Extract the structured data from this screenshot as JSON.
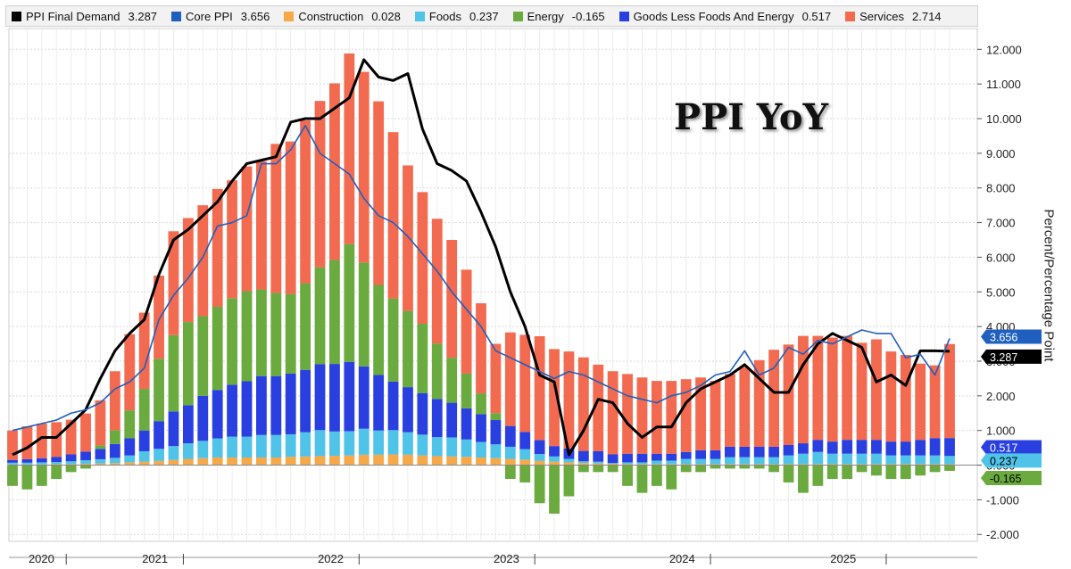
{
  "legend": [
    {
      "name": "PPI Final Demand",
      "value": "3.287",
      "color": "#000000"
    },
    {
      "name": "Core PPI",
      "value": "3.656",
      "color": "#1f5fbf"
    },
    {
      "name": "Construction",
      "value": "0.028",
      "color": "#f7a94a"
    },
    {
      "name": "Foods",
      "value": "0.237",
      "color": "#4fc3e8"
    },
    {
      "name": "Energy",
      "value": "-0.165",
      "color": "#6aaa3f"
    },
    {
      "name": "Goods Less Foods And Energy",
      "value": "0.517",
      "color": "#2a3fe0"
    },
    {
      "name": "Services",
      "value": "2.714",
      "color": "#f26b50"
    }
  ],
  "title": "PPI YoY",
  "ylabel": "Percent/Percentage Point",
  "last_value_tags": [
    {
      "text": "3.656",
      "value": 3.656,
      "bg": "#1f5fbf",
      "fg": "#ffffff"
    },
    {
      "text": "3.287",
      "value": 3.287,
      "bg": "#000000",
      "fg": "#ffffff"
    },
    {
      "text": "0.517",
      "value": 0.517,
      "bg": "#2a3fe0",
      "fg": "#ffffff"
    },
    {
      "text": "0.237",
      "value": 0.237,
      "bg": "#4fc3e8",
      "fg": "#000000"
    },
    {
      "text": "-0.165",
      "value": -0.165,
      "bg": "#6aaa3f",
      "fg": "#000000"
    }
  ],
  "chart_data": {
    "type": "bar",
    "stacked": true,
    "ylim": [
      -2.2,
      12.6
    ],
    "yticks": [
      -2,
      -1,
      0,
      1,
      2,
      3,
      4,
      5,
      6,
      7,
      8,
      9,
      10,
      11,
      12
    ],
    "ytick_labels": [
      "-2.000",
      "-1.000",
      "0.000",
      "1.000",
      "2.000",
      "3.000",
      "4.000",
      "5.000",
      "6.000",
      "7.000",
      "8.000",
      "9.000",
      "10.000",
      "11.000",
      "12.000"
    ],
    "year_labels": [
      {
        "label": "2020",
        "month_index": 1
      },
      {
        "label": "2021",
        "month_index": 9
      },
      {
        "label": "2022",
        "month_index": 21
      },
      {
        "label": "2023",
        "month_index": 33
      },
      {
        "label": "2024",
        "month_index": 45
      },
      {
        "label": "2025",
        "month_index": 56
      }
    ],
    "categories": [
      "2020-04",
      "2020-05",
      "2020-06",
      "2020-07",
      "2020-08",
      "2020-09",
      "2020-10",
      "2020-11",
      "2020-12",
      "2021-01",
      "2021-02",
      "2021-03",
      "2021-04",
      "2021-05",
      "2021-06",
      "2021-07",
      "2021-08",
      "2021-09",
      "2021-10",
      "2021-11",
      "2021-12",
      "2022-01",
      "2022-02",
      "2022-03",
      "2022-04",
      "2022-05",
      "2022-06",
      "2022-07",
      "2022-08",
      "2022-09",
      "2022-10",
      "2022-11",
      "2022-12",
      "2023-01",
      "2023-02",
      "2023-03",
      "2023-04",
      "2023-05",
      "2023-06",
      "2023-07",
      "2023-08",
      "2023-09",
      "2023-10",
      "2023-11",
      "2023-12",
      "2024-01",
      "2024-02",
      "2024-03",
      "2024-04",
      "2024-05",
      "2024-06",
      "2024-07",
      "2024-08",
      "2024-09",
      "2024-10",
      "2024-11",
      "2024-12",
      "2025-01",
      "2025-02",
      "2025-03",
      "2025-04",
      "2025-05",
      "2025-06",
      "2025-07",
      "2025-08"
    ],
    "series": [
      {
        "name": "Construction",
        "color": "#f7a94a",
        "values": [
          0.02,
          0.02,
          0.02,
          0.03,
          0.03,
          0.04,
          0.05,
          0.06,
          0.08,
          0.1,
          0.12,
          0.15,
          0.18,
          0.2,
          0.22,
          0.22,
          0.22,
          0.22,
          0.22,
          0.24,
          0.25,
          0.26,
          0.27,
          0.28,
          0.3,
          0.3,
          0.31,
          0.3,
          0.28,
          0.26,
          0.25,
          0.24,
          0.22,
          0.2,
          0.18,
          0.16,
          0.12,
          0.1,
          0.08,
          0.06,
          0.05,
          0.04,
          0.03,
          0.03,
          0.03,
          0.03,
          0.03,
          0.03,
          0.03,
          0.03,
          0.03,
          0.03,
          0.03,
          0.03,
          0.03,
          0.03,
          0.03,
          0.03,
          0.03,
          0.03,
          0.03,
          0.03,
          0.03,
          0.03,
          0.028
        ]
      },
      {
        "name": "Foods",
        "color": "#4fc3e8",
        "values": [
          0.05,
          0.05,
          0.06,
          0.06,
          0.08,
          0.1,
          0.12,
          0.15,
          0.2,
          0.3,
          0.35,
          0.4,
          0.45,
          0.5,
          0.55,
          0.6,
          0.6,
          0.65,
          0.65,
          0.65,
          0.7,
          0.75,
          0.7,
          0.7,
          0.75,
          0.7,
          0.7,
          0.65,
          0.6,
          0.55,
          0.55,
          0.5,
          0.45,
          0.4,
          0.35,
          0.3,
          0.2,
          0.15,
          0.1,
          0.05,
          0.05,
          0.02,
          0.05,
          0.05,
          0.1,
          0.1,
          0.15,
          0.15,
          0.15,
          0.2,
          0.2,
          0.2,
          0.2,
          0.25,
          0.3,
          0.35,
          0.3,
          0.3,
          0.3,
          0.3,
          0.25,
          0.25,
          0.25,
          0.25,
          0.237
        ]
      },
      {
        "name": "Goods Less Foods And Energy",
        "color": "#2a3fe0",
        "values": [
          0.08,
          0.1,
          0.12,
          0.15,
          0.2,
          0.25,
          0.3,
          0.4,
          0.5,
          0.6,
          0.8,
          1.0,
          1.1,
          1.3,
          1.4,
          1.5,
          1.6,
          1.7,
          1.7,
          1.75,
          1.8,
          1.9,
          1.95,
          2.0,
          1.8,
          1.6,
          1.4,
          1.3,
          1.2,
          1.1,
          1.0,
          0.9,
          0.8,
          0.7,
          0.6,
          0.5,
          0.4,
          0.3,
          0.3,
          0.3,
          0.3,
          0.25,
          0.25,
          0.25,
          0.2,
          0.2,
          0.2,
          0.25,
          0.25,
          0.3,
          0.3,
          0.3,
          0.3,
          0.3,
          0.3,
          0.35,
          0.35,
          0.4,
          0.4,
          0.4,
          0.4,
          0.4,
          0.45,
          0.5,
          0.517
        ]
      },
      {
        "name": "Energy",
        "color": "#6aaa3f",
        "values": [
          -0.6,
          -0.7,
          -0.6,
          -0.4,
          -0.2,
          -0.1,
          0.1,
          0.4,
          0.8,
          1.2,
          1.8,
          2.2,
          2.4,
          2.3,
          2.4,
          2.5,
          2.6,
          2.5,
          2.4,
          2.3,
          2.5,
          2.8,
          3.0,
          3.4,
          3.0,
          2.6,
          2.4,
          2.2,
          2.0,
          1.6,
          1.3,
          1.0,
          0.6,
          0.2,
          -0.4,
          -0.5,
          -1.1,
          -1.4,
          -0.9,
          -0.2,
          -0.2,
          -0.2,
          -0.6,
          -0.8,
          -0.6,
          -0.7,
          -0.2,
          -0.2,
          -0.1,
          -0.1,
          -0.1,
          -0.1,
          -0.2,
          -0.5,
          -0.8,
          -0.6,
          -0.4,
          -0.4,
          -0.2,
          -0.3,
          -0.4,
          -0.4,
          -0.3,
          -0.2,
          -0.165
        ]
      },
      {
        "name": "Services",
        "color": "#f26b50",
        "values": [
          0.85,
          0.95,
          1.0,
          1.0,
          1.0,
          1.1,
          1.3,
          1.7,
          2.2,
          2.2,
          2.4,
          3.0,
          3.0,
          3.2,
          3.4,
          3.4,
          3.6,
          3.7,
          4.3,
          4.4,
          4.7,
          4.8,
          5.1,
          5.5,
          5.5,
          5.3,
          4.8,
          4.2,
          3.8,
          3.6,
          3.4,
          3.0,
          2.6,
          2.0,
          2.7,
          2.8,
          3.0,
          2.8,
          2.8,
          2.7,
          2.5,
          2.4,
          2.3,
          2.2,
          2.1,
          2.1,
          2.1,
          2.1,
          2.0,
          2.1,
          2.3,
          2.5,
          2.8,
          2.9,
          3.1,
          3.0,
          3.0,
          3.0,
          2.8,
          2.9,
          2.6,
          2.5,
          2.2,
          2.1,
          2.714
        ]
      }
    ],
    "lines": [
      {
        "name": "PPI Final Demand",
        "color": "#000000",
        "width": 3,
        "values": [
          0.3,
          0.5,
          0.8,
          0.8,
          1.2,
          1.6,
          2.5,
          3.3,
          3.8,
          4.2,
          5.5,
          6.5,
          6.8,
          7.2,
          7.6,
          8.2,
          8.7,
          8.8,
          8.9,
          9.9,
          10.0,
          10.0,
          10.3,
          10.6,
          11.7,
          11.2,
          11.1,
          11.3,
          9.7,
          8.7,
          8.5,
          8.2,
          7.3,
          6.3,
          5.0,
          4.0,
          2.6,
          2.4,
          0.3,
          1.0,
          1.9,
          1.8,
          1.2,
          0.8,
          1.1,
          1.1,
          1.8,
          2.2,
          2.4,
          2.6,
          2.9,
          2.5,
          2.1,
          2.1,
          2.9,
          3.5,
          3.8,
          3.6,
          3.4,
          2.4,
          2.6,
          2.3,
          3.3,
          3.3,
          3.287
        ]
      },
      {
        "name": "Core PPI",
        "color": "#1f5fbf",
        "width": 1.6,
        "values": [
          1.0,
          1.1,
          1.2,
          1.3,
          1.5,
          1.6,
          1.8,
          2.2,
          2.4,
          2.8,
          4.2,
          4.9,
          5.4,
          6.0,
          6.9,
          7.0,
          7.2,
          8.7,
          8.7,
          9.1,
          9.8,
          9.0,
          8.7,
          8.4,
          7.7,
          7.2,
          7.0,
          6.6,
          6.1,
          5.6,
          5.0,
          4.5,
          4.0,
          3.3,
          3.1,
          2.9,
          2.7,
          2.5,
          2.7,
          2.6,
          2.4,
          2.2,
          2.0,
          1.9,
          1.8,
          2.0,
          2.1,
          2.3,
          2.6,
          2.7,
          3.3,
          2.6,
          2.8,
          3.4,
          3.2,
          3.6,
          3.5,
          3.7,
          3.9,
          3.8,
          3.8,
          3.1,
          3.2,
          2.6,
          3.656
        ]
      }
    ]
  }
}
